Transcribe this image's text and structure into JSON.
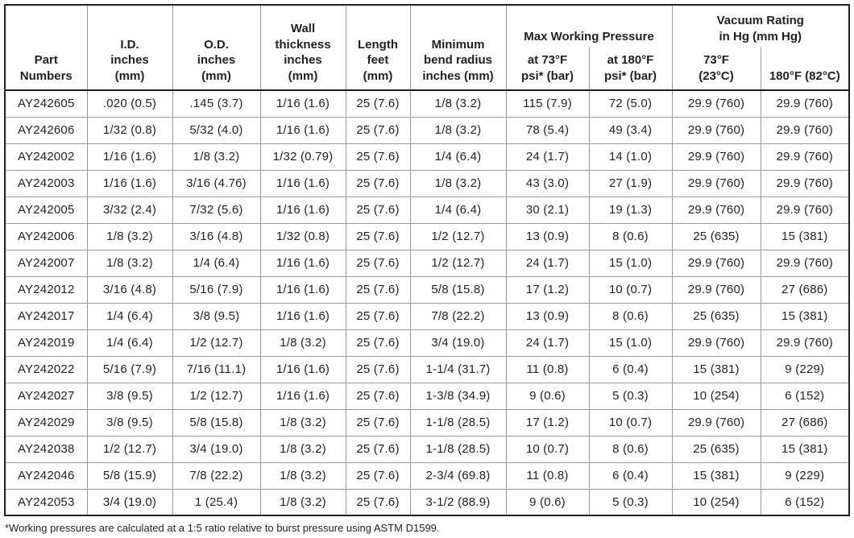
{
  "table": {
    "column_keys": [
      "part_number",
      "id",
      "od",
      "wall_thickness",
      "length",
      "min_bend_radius",
      "mwp_73f",
      "mwp_180f",
      "vac_73f",
      "vac_180f"
    ],
    "header": {
      "part_numbers": "Part\nNumbers",
      "id": "I.D.\ninches\n(mm)",
      "od": "O.D.\ninches\n(mm)",
      "wall_thickness": "Wall\nthickness\ninches\n(mm)",
      "length": "Length\nfeet\n(mm)",
      "min_bend_radius": "Minimum\nbend radius\ninches (mm)",
      "max_working_pressure": "Max Working Pressure",
      "at_73f": "at 73°F\npsi* (bar)",
      "at_180f": "at 180°F\npsi* (bar)",
      "vacuum_rating": "Vacuum Rating\nin Hg (mm Hg)",
      "vac_73f": "73°F\n(23°C)",
      "vac_180f": "180°F (82°C)"
    },
    "rows": [
      [
        "AY242605",
        ".020 (0.5)",
        ".145 (3.7)",
        "1/16 (1.6)",
        "25 (7.6)",
        "1/8 (3.2)",
        "115 (7.9)",
        "72 (5.0)",
        "29.9 (760)",
        "29.9 (760)"
      ],
      [
        "AY242606",
        "1/32 (0.8)",
        "5/32 (4.0)",
        "1/16 (1.6)",
        "25 (7.6)",
        "1/8 (3.2)",
        "78 (5.4)",
        "49 (3.4)",
        "29.9 (760)",
        "29.9 (760)"
      ],
      [
        "AY242002",
        "1/16 (1.6)",
        "1/8 (3.2)",
        "1/32 (0.79)",
        "25 (7.6)",
        "1/4 (6.4)",
        "24 (1.7)",
        "14 (1.0)",
        "29.9 (760)",
        "29.9 (760)"
      ],
      [
        "AY242003",
        "1/16 (1.6)",
        "3/16 (4.76)",
        "1/16 (1.6)",
        "25 (7.6)",
        "1/8 (3.2)",
        "43 (3.0)",
        "27 (1.9)",
        "29.9 (760)",
        "29.9 (760)"
      ],
      [
        "AY242005",
        "3/32 (2.4)",
        "7/32 (5.6)",
        "1/16 (1.6)",
        "25 (7.6)",
        "1/4 (6.4)",
        "30 (2.1)",
        "19 (1.3)",
        "29.9 (760)",
        "29.9 (760)"
      ],
      [
        "AY242006",
        "1/8 (3.2)",
        "3/16 (4.8)",
        "1/32 (0.8)",
        "25 (7.6)",
        "1/2 (12.7)",
        "13 (0.9)",
        "8 (0.6)",
        "25 (635)",
        "15 (381)"
      ],
      [
        "AY242007",
        "1/8 (3.2)",
        "1/4 (6.4)",
        "1/16 (1.6)",
        "25 (7.6)",
        "1/2 (12.7)",
        "24 (1.7)",
        "15 (1.0)",
        "29.9 (760)",
        "29.9 (760)"
      ],
      [
        "AY242012",
        "3/16 (4.8)",
        "5/16 (7.9)",
        "1/16 (1.6)",
        "25 (7.6)",
        "5/8 (15.8)",
        "17 (1.2)",
        "10 (0.7)",
        "29.9 (760)",
        "27 (686)"
      ],
      [
        "AY242017",
        "1/4 (6.4)",
        "3/8 (9.5)",
        "1/16 (1.6)",
        "25 (7.6)",
        "7/8 (22.2)",
        "13 (0.9)",
        "8 (0.6)",
        "25 (635)",
        "15 (381)"
      ],
      [
        "AY242019",
        "1/4 (6.4)",
        "1/2 (12.7)",
        "1/8 (3.2)",
        "25 (7.6)",
        "3/4 (19.0)",
        "24 (1.7)",
        "15 (1.0)",
        "29.9 (760)",
        "29.9 (760)"
      ],
      [
        "AY242022",
        "5/16 (7.9)",
        "7/16 (11.1)",
        "1/16 (1.6)",
        "25 (7.6)",
        "1-1/4 (31.7)",
        "11 (0.8)",
        "6 (0.4)",
        "15 (381)",
        "9 (229)"
      ],
      [
        "AY242027",
        "3/8 (9.5)",
        "1/2 (12.7)",
        "1/16 (1.6)",
        "25 (7.6)",
        "1-3/8 (34.9)",
        "9 (0.6)",
        "5 (0.3)",
        "10 (254)",
        "6 (152)"
      ],
      [
        "AY242029",
        "3/8 (9.5)",
        "5/8 (15.8)",
        "1/8 (3.2)",
        "25 (7.6)",
        "1-1/8 (28.5)",
        "17 (1.2)",
        "10 (0.7)",
        "29.9 (760)",
        "27 (686)"
      ],
      [
        "AY242038",
        "1/2 (12.7)",
        "3/4 (19.0)",
        "1/8 (3.2)",
        "25 (7.6)",
        "1-1/8 (28.5)",
        "10 (0.7)",
        "8 (0.6)",
        "25 (635)",
        "15 (381)"
      ],
      [
        "AY242046",
        "5/8 (15.9)",
        "7/8 (22.2)",
        "1/8 (3.2)",
        "25 (7.6)",
        "2-3/4 (69.8)",
        "11 (0.8)",
        "6 (0.4)",
        "15 (381)",
        "9 (229)"
      ],
      [
        "AY242053",
        "3/4 (19.0)",
        "1 (25.4)",
        "1/8 (3.2)",
        "25 (7.6)",
        "3-1/2 (88.9)",
        "9 (0.6)",
        "5 (0.3)",
        "10 (254)",
        "6 (152)"
      ]
    ],
    "footnote": "*Working pressures are calculated at a 1:5 ratio relative to burst pressure using ASTM D1599."
  }
}
